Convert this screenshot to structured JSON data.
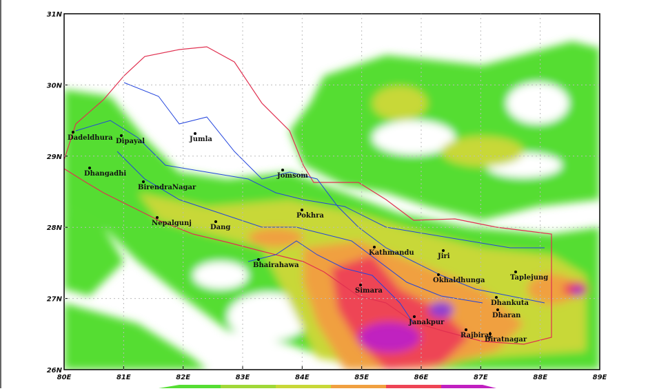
{
  "map": {
    "xticks": [
      "80E",
      "81E",
      "82E",
      "83E",
      "84E",
      "85E",
      "86E",
      "87E",
      "88E",
      "89E"
    ],
    "yticks": [
      "31N",
      "30N",
      "29N",
      "28N",
      "27N",
      "26N"
    ],
    "cities": [
      "Dadeldhura",
      "Dipayal",
      "Jumla",
      "Dhangadhi",
      "BirendraNagar",
      "Jomsom",
      "Nepalgunj",
      "Dang",
      "Pokhra",
      "Kathmandu",
      "Jiri",
      "Bhairahawa",
      "Okhaldhunga",
      "Taplejung",
      "Simara",
      "Dhankuta",
      "Dharan",
      "Janakpur",
      "Rajbiraj",
      "Biratnagar"
    ]
  }
}
